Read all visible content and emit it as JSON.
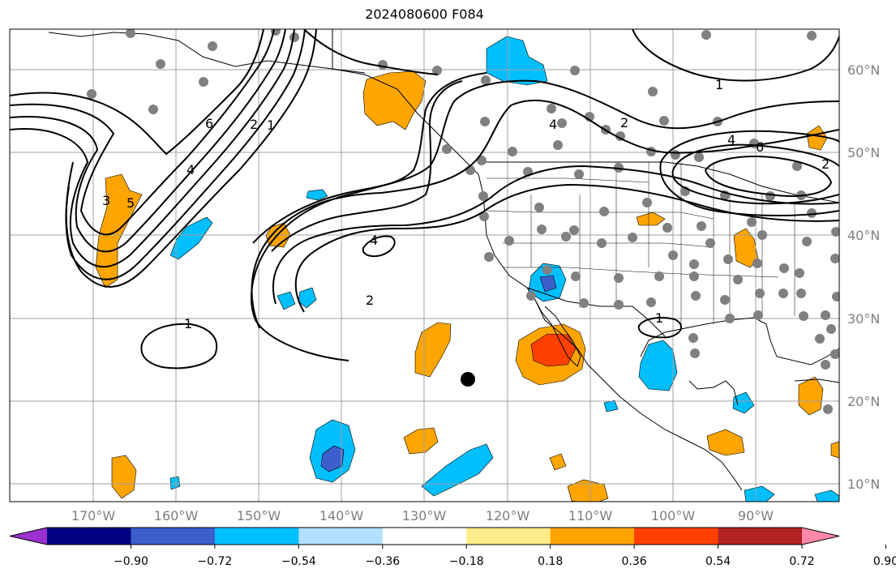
{
  "title": "2024080600 F084",
  "latitude_labels": [
    "60°N",
    "50°N",
    "40°N",
    "30°N",
    "20°N",
    "10°N"
  ],
  "longitude_labels": [
    "170°W",
    "160°W",
    "150°W",
    "140°W",
    "130°W",
    "120°W",
    "110°W",
    "100°W",
    "90°W"
  ],
  "colorbar": {
    "tick_labels": [
      "−0.90",
      "−0.72",
      "−0.54",
      "−0.36",
      "−0.18",
      "0.18",
      "0.36",
      "0.54",
      "0.72",
      "0.90"
    ],
    "colors": [
      "#9b30d0",
      "#000080",
      "#3a5fcd",
      "#00bfff",
      "#b0e2ff",
      "#ffffff",
      "#ffec8b",
      "#ffa500",
      "#ff4000",
      "#b22222",
      "#ff88aa"
    ]
  },
  "contour_labels": [
    "6",
    "2",
    "1",
    "4",
    "3",
    "5",
    "4",
    "2",
    "4",
    "2",
    "1",
    "1",
    "4",
    "6",
    "2",
    "1"
  ],
  "colors": {
    "contour": "#000000",
    "grid": "#a0a0a0",
    "station": "#808080",
    "marker": "#000000"
  }
}
